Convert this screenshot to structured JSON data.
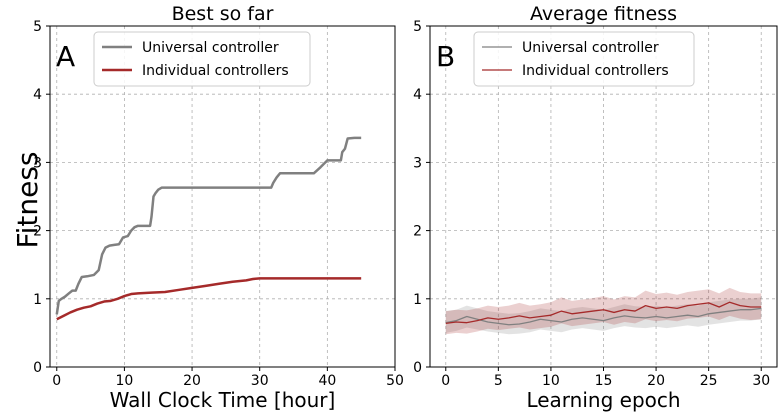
{
  "shared": {
    "ylabel": "Fitness"
  },
  "chart_data": [
    {
      "type": "line",
      "panel_letter": "A",
      "title": "Best so far",
      "xlabel": "Wall Clock Time [hour]",
      "xlim": [
        -1,
        50
      ],
      "ylim": [
        0,
        5
      ],
      "xticks": [
        0,
        10,
        20,
        30,
        40,
        50
      ],
      "yticks": [
        0,
        1,
        2,
        3,
        4,
        5
      ],
      "grid": true,
      "legend_position": "top-center",
      "series": [
        {
          "name": "Universal controller",
          "color": "#808080",
          "x": [
            0,
            0.3,
            0.7,
            1.2,
            1.8,
            2.3,
            2.8,
            3.2,
            3.7,
            4.5,
            5.5,
            6.2,
            6.7,
            7.2,
            7.8,
            8.5,
            9.2,
            9.8,
            10.5,
            11,
            11.5,
            12,
            13,
            13.8,
            14,
            14.3,
            14.6,
            15,
            15.5,
            16,
            20,
            25,
            31.7,
            32,
            32.5,
            33,
            35,
            37,
            38,
            39,
            40,
            41,
            42,
            42.2,
            42.6,
            43,
            44,
            45
          ],
          "y": [
            0.77,
            0.97,
            1.0,
            1.03,
            1.08,
            1.12,
            1.12,
            1.22,
            1.32,
            1.33,
            1.35,
            1.42,
            1.65,
            1.75,
            1.78,
            1.79,
            1.8,
            1.9,
            1.92,
            2.0,
            2.05,
            2.07,
            2.07,
            2.07,
            2.2,
            2.5,
            2.55,
            2.6,
            2.63,
            2.63,
            2.63,
            2.63,
            2.63,
            2.7,
            2.78,
            2.84,
            2.84,
            2.84,
            2.84,
            2.93,
            3.03,
            3.03,
            3.03,
            3.15,
            3.2,
            3.35,
            3.36,
            3.36
          ]
        },
        {
          "name": "Individual controllers",
          "color": "#a52a2a",
          "x": [
            0,
            1,
            2,
            3,
            4,
            5,
            6,
            7,
            8,
            9,
            10,
            11,
            12,
            14,
            16,
            18,
            20,
            22,
            24,
            26,
            28,
            29,
            30,
            32,
            35,
            40,
            45
          ],
          "y": [
            0.7,
            0.75,
            0.8,
            0.84,
            0.87,
            0.89,
            0.93,
            0.96,
            0.97,
            1.0,
            1.04,
            1.07,
            1.08,
            1.09,
            1.1,
            1.13,
            1.16,
            1.19,
            1.22,
            1.25,
            1.27,
            1.29,
            1.3,
            1.3,
            1.3,
            1.3,
            1.3
          ]
        }
      ]
    },
    {
      "type": "line",
      "panel_letter": "B",
      "title": "Average fitness",
      "xlabel": "Learning epoch",
      "xlim": [
        -1.5,
        31.5
      ],
      "ylim": [
        0,
        5
      ],
      "xticks": [
        0,
        5,
        10,
        15,
        20,
        25,
        30
      ],
      "yticks": [
        0,
        1,
        2,
        3,
        4,
        5
      ],
      "grid": true,
      "legend_position": "top-center",
      "series": [
        {
          "name": "Universal controller",
          "color": "#808080",
          "x": [
            0,
            1,
            2,
            3,
            4,
            5,
            6,
            7,
            8,
            9,
            10,
            11,
            12,
            13,
            14,
            15,
            16,
            17,
            18,
            19,
            20,
            21,
            22,
            23,
            24,
            25,
            26,
            27,
            28,
            29,
            30
          ],
          "y": [
            0.65,
            0.68,
            0.74,
            0.7,
            0.66,
            0.64,
            0.62,
            0.63,
            0.66,
            0.7,
            0.68,
            0.66,
            0.7,
            0.72,
            0.7,
            0.68,
            0.72,
            0.75,
            0.73,
            0.72,
            0.74,
            0.72,
            0.74,
            0.76,
            0.74,
            0.78,
            0.8,
            0.82,
            0.84,
            0.84,
            0.86
          ],
          "lower": [
            0.5,
            0.53,
            0.58,
            0.55,
            0.52,
            0.5,
            0.48,
            0.49,
            0.51,
            0.55,
            0.53,
            0.51,
            0.55,
            0.57,
            0.55,
            0.53,
            0.57,
            0.6,
            0.58,
            0.57,
            0.59,
            0.57,
            0.59,
            0.61,
            0.59,
            0.62,
            0.64,
            0.66,
            0.68,
            0.68,
            0.7
          ],
          "upper": [
            0.82,
            0.84,
            0.9,
            0.86,
            0.82,
            0.8,
            0.78,
            0.79,
            0.82,
            0.86,
            0.84,
            0.82,
            0.86,
            0.88,
            0.86,
            0.84,
            0.88,
            0.92,
            0.89,
            0.88,
            0.9,
            0.88,
            0.9,
            0.92,
            0.9,
            0.95,
            0.97,
            0.99,
            1.0,
            1.0,
            1.02
          ]
        },
        {
          "name": "Individual controllers",
          "color": "#a52a2a",
          "x": [
            0,
            1,
            2,
            3,
            4,
            5,
            6,
            7,
            8,
            9,
            10,
            11,
            12,
            13,
            14,
            15,
            16,
            17,
            18,
            19,
            20,
            21,
            22,
            23,
            24,
            25,
            26,
            27,
            28,
            29,
            30
          ],
          "y": [
            0.64,
            0.66,
            0.65,
            0.68,
            0.72,
            0.7,
            0.72,
            0.75,
            0.72,
            0.74,
            0.76,
            0.82,
            0.78,
            0.8,
            0.82,
            0.84,
            0.8,
            0.84,
            0.82,
            0.9,
            0.86,
            0.88,
            0.86,
            0.9,
            0.92,
            0.94,
            0.88,
            0.95,
            0.9,
            0.88,
            0.88
          ],
          "lower": [
            0.48,
            0.5,
            0.49,
            0.52,
            0.56,
            0.54,
            0.56,
            0.58,
            0.55,
            0.57,
            0.59,
            0.64,
            0.6,
            0.62,
            0.64,
            0.66,
            0.62,
            0.66,
            0.64,
            0.7,
            0.67,
            0.69,
            0.67,
            0.71,
            0.72,
            0.74,
            0.69,
            0.75,
            0.71,
            0.69,
            0.7
          ],
          "upper": [
            0.82,
            0.84,
            0.83,
            0.86,
            0.9,
            0.88,
            0.9,
            0.94,
            0.9,
            0.92,
            0.95,
            1.02,
            0.97,
            0.99,
            1.01,
            1.04,
            0.99,
            1.04,
            1.02,
            1.12,
            1.07,
            1.09,
            1.06,
            1.1,
            1.12,
            1.14,
            1.08,
            1.16,
            1.1,
            1.08,
            1.08
          ]
        }
      ]
    }
  ]
}
